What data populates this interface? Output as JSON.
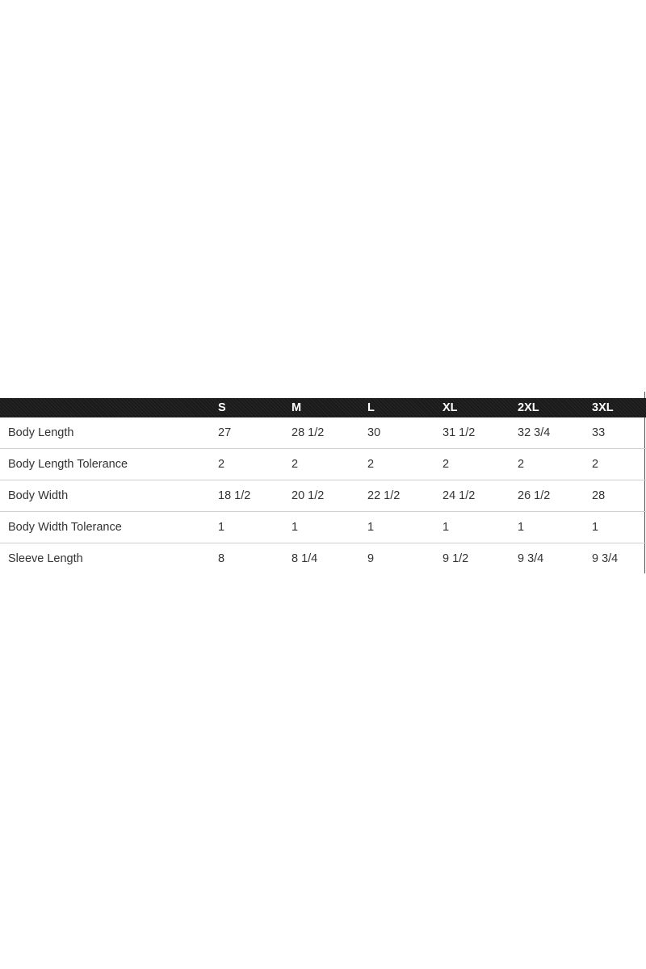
{
  "size_chart": {
    "columns": [
      "",
      "S",
      "M",
      "L",
      "XL",
      "2XL",
      "3XL"
    ],
    "rows": [
      {
        "label": "Body Length",
        "values": [
          "27",
          "28 1/2",
          "30",
          "31 1/2",
          "32 3/4",
          "33"
        ]
      },
      {
        "label": "Body Length Tolerance",
        "values": [
          "2",
          "2",
          "2",
          "2",
          "2",
          "2"
        ]
      },
      {
        "label": "Body Width",
        "values": [
          "18 1/2",
          "20 1/2",
          "22 1/2",
          "24 1/2",
          "26 1/2",
          "28"
        ]
      },
      {
        "label": "Body Width Tolerance",
        "values": [
          "1",
          "1",
          "1",
          "1",
          "1",
          "1"
        ]
      },
      {
        "label": "Sleeve Length",
        "values": [
          "8",
          "8 1/4",
          "9",
          "9 1/2",
          "9 3/4",
          "9 3/4"
        ]
      }
    ]
  },
  "colors": {
    "header_bg": "#1e1e1e",
    "header_text": "#ffffff",
    "row_divider": "#cfcfcf",
    "text": "#333333"
  }
}
